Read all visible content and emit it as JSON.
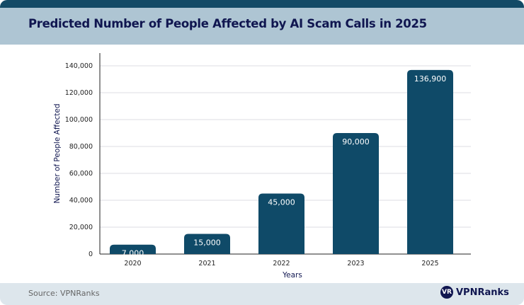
{
  "header": {
    "title": "Predicted Number of People Affected by AI Scam Calls in 2025"
  },
  "footer": {
    "source": "Source: VPNRanks",
    "logo_text": "VPNRanks",
    "logo_badge": "VR"
  },
  "colors": {
    "bar": "#0f4a68",
    "title": "#101650",
    "title_band": "#aec5d3",
    "top_band": "#134a66",
    "footer": "#dde6ec"
  },
  "chart_data": {
    "type": "bar",
    "title": "Predicted Number of People Affected by AI Scam Calls in 2025",
    "xlabel": "Years",
    "ylabel": "Number of People Affected",
    "categories": [
      "2020",
      "2021",
      "2022",
      "2023",
      "2025"
    ],
    "values": [
      7000,
      15000,
      45000,
      90000,
      136900
    ],
    "value_labels": [
      "7,000",
      "15,000",
      "45,000",
      "90,000",
      "136,900"
    ],
    "ylim": [
      0,
      140000
    ],
    "yticks": [
      0,
      20000,
      40000,
      60000,
      80000,
      100000,
      120000,
      140000
    ],
    "ytick_labels": [
      "0",
      "20,000",
      "40,000",
      "60,000",
      "80,000",
      "100,000",
      "120,000",
      "140,000"
    ],
    "grid": true,
    "legend": "none"
  }
}
